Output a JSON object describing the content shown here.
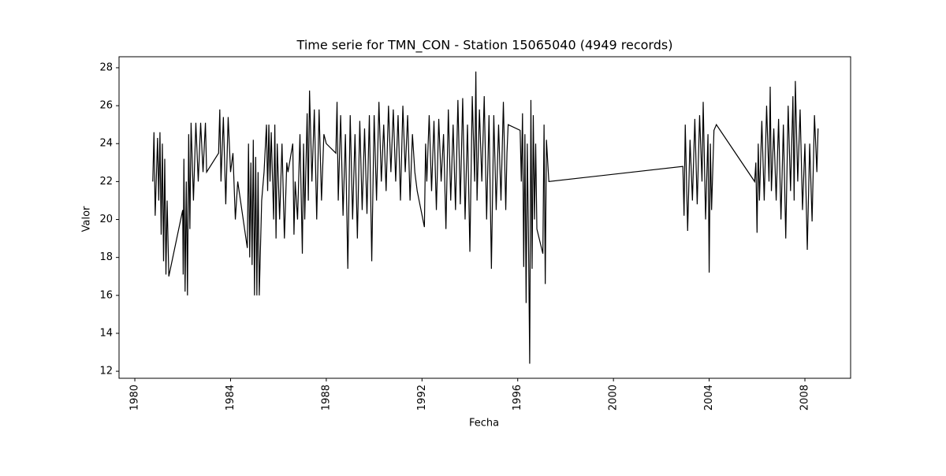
{
  "chart_data": {
    "type": "line",
    "title": "Time serie for TMN_CON - Station 15065040 (4949 records)",
    "x_label": "Fecha",
    "y_label": "Valor",
    "xlim": [
      1979.34,
      2009.91
    ],
    "xticks": [
      1980,
      1984,
      1988,
      1992,
      1996,
      2000,
      2004,
      2008
    ],
    "ylim": [
      11.63,
      28.58
    ],
    "yticks": [
      12,
      14,
      16,
      18,
      20,
      22,
      24,
      26,
      28
    ],
    "color": "#000000",
    "x": [
      1980.75,
      1980.8,
      1980.85,
      1980.95,
      1981.0,
      1981.05,
      1981.1,
      1981.15,
      1981.2,
      1981.25,
      1981.3,
      1981.35,
      1981.42,
      1982.0,
      1982.02,
      1982.05,
      1982.1,
      1982.15,
      1982.2,
      1982.25,
      1982.3,
      1982.35,
      1982.45,
      1982.55,
      1982.65,
      1982.75,
      1982.85,
      1982.95,
      1983.0,
      1983.5,
      1983.55,
      1983.6,
      1983.7,
      1983.8,
      1983.9,
      1984.0,
      1984.1,
      1984.2,
      1984.3,
      1984.7,
      1984.75,
      1984.8,
      1984.85,
      1984.9,
      1984.95,
      1985.0,
      1985.05,
      1985.1,
      1985.15,
      1985.2,
      1985.3,
      1985.4,
      1985.5,
      1985.55,
      1985.6,
      1985.65,
      1985.7,
      1985.8,
      1985.85,
      1985.9,
      1985.95,
      1986.05,
      1986.15,
      1986.25,
      1986.35,
      1986.4,
      1986.6,
      1986.65,
      1986.7,
      1986.8,
      1986.9,
      1987.0,
      1987.05,
      1987.1,
      1987.2,
      1987.25,
      1987.3,
      1987.4,
      1987.5,
      1987.6,
      1987.7,
      1987.8,
      1987.9,
      1988.0,
      1988.4,
      1988.45,
      1988.5,
      1988.6,
      1988.7,
      1988.8,
      1988.9,
      1989.0,
      1989.1,
      1989.2,
      1989.3,
      1989.4,
      1989.5,
      1989.6,
      1989.7,
      1989.8,
      1989.9,
      1990.0,
      1990.1,
      1990.2,
      1990.3,
      1990.4,
      1990.5,
      1990.6,
      1990.7,
      1990.8,
      1990.9,
      1991.0,
      1991.1,
      1991.2,
      1991.3,
      1991.4,
      1991.5,
      1991.6,
      1991.7,
      1991.8,
      1992.1,
      1992.15,
      1992.2,
      1992.3,
      1992.4,
      1992.5,
      1992.6,
      1992.7,
      1992.8,
      1992.9,
      1993.0,
      1993.1,
      1993.2,
      1993.3,
      1993.4,
      1993.5,
      1993.6,
      1993.7,
      1993.8,
      1993.9,
      1994.0,
      1994.1,
      1994.2,
      1994.25,
      1994.3,
      1994.4,
      1994.5,
      1994.6,
      1994.7,
      1994.8,
      1994.9,
      1995.0,
      1995.1,
      1995.2,
      1995.3,
      1995.4,
      1995.5,
      1995.55,
      1995.6,
      1996.1,
      1996.15,
      1996.2,
      1996.25,
      1996.3,
      1996.35,
      1996.4,
      1996.45,
      1996.5,
      1996.55,
      1996.6,
      1996.65,
      1996.7,
      1996.75,
      1996.8,
      1997.05,
      1997.1,
      1997.15,
      1997.2,
      1997.3,
      2002.9,
      2002.95,
      2003.0,
      2003.1,
      2003.2,
      2003.3,
      2003.4,
      2003.5,
      2003.6,
      2003.7,
      2003.75,
      2003.85,
      2003.95,
      2004.0,
      2004.05,
      2004.1,
      2004.2,
      2004.3,
      2005.9,
      2005.95,
      2006.0,
      2006.05,
      2006.1,
      2006.2,
      2006.3,
      2006.4,
      2006.5,
      2006.55,
      2006.6,
      2006.7,
      2006.8,
      2006.9,
      2007.0,
      2007.1,
      2007.2,
      2007.3,
      2007.4,
      2007.5,
      2007.55,
      2007.6,
      2007.7,
      2007.8,
      2007.9,
      2008.0,
      2008.1,
      2008.2,
      2008.3,
      2008.4,
      2008.5,
      2008.55
    ],
    "values": [
      22,
      24.6,
      20.2,
      24.3,
      21,
      24.6,
      19.2,
      24,
      17.8,
      23.2,
      17.1,
      21,
      17,
      20.5,
      17.1,
      23.2,
      16.2,
      22,
      16,
      24.5,
      19.5,
      25.1,
      21,
      25.1,
      22,
      25.1,
      22.5,
      25.1,
      22.5,
      23.5,
      25.8,
      22,
      25.4,
      20.8,
      25.4,
      22.5,
      23.5,
      20,
      22,
      18.5,
      24,
      18,
      23,
      17.6,
      24.2,
      16,
      23.3,
      16,
      22.5,
      16,
      21,
      22.5,
      25,
      21.5,
      25,
      22,
      24.6,
      20,
      25,
      19,
      24,
      20,
      24,
      19,
      23,
      22.5,
      24,
      19.2,
      22,
      20,
      24.5,
      18.2,
      24,
      20,
      25.6,
      21,
      26.8,
      22,
      25.8,
      20,
      25.8,
      21,
      24.5,
      24,
      23.5,
      26.2,
      21,
      25.5,
      20.2,
      24.5,
      17.4,
      25.5,
      20,
      24.5,
      19,
      25.2,
      20.5,
      24.8,
      20.3,
      25.5,
      17.8,
      25.5,
      21,
      26.2,
      22,
      25,
      21.5,
      26,
      22.5,
      25.8,
      22,
      25.5,
      21,
      26,
      22.5,
      25.5,
      21,
      24.5,
      22.5,
      21.5,
      19.6,
      24,
      22,
      25.5,
      21.5,
      25.2,
      20.5,
      25.3,
      22,
      24.5,
      19.5,
      25.8,
      21,
      25,
      20.5,
      26.3,
      20.8,
      26.4,
      20,
      25,
      18.3,
      26.5,
      22,
      27.8,
      21,
      25.8,
      22,
      26.5,
      20,
      25.5,
      17.4,
      25.5,
      20.5,
      25,
      21,
      26.2,
      20.5,
      23.5,
      25,
      24.7,
      22,
      25.6,
      17.5,
      24.5,
      15.6,
      24,
      19,
      12.4,
      26.3,
      17.4,
      25.5,
      20,
      24,
      19.5,
      18.2,
      25,
      16.6,
      24.2,
      22,
      22.8,
      20.2,
      25,
      19.4,
      24.2,
      21,
      25.3,
      20.8,
      25.5,
      22,
      26.2,
      20,
      24.5,
      17.2,
      24,
      20.5,
      24.7,
      25,
      22,
      23,
      19.3,
      24,
      21,
      25.2,
      21,
      26,
      22,
      27,
      21.5,
      24.8,
      21,
      25.3,
      20,
      25,
      19,
      26,
      21.5,
      26.5,
      21,
      27.3,
      22,
      25.8,
      20.5,
      24,
      18.4,
      24,
      19.9,
      25.5,
      22.5,
      24.8
    ]
  }
}
